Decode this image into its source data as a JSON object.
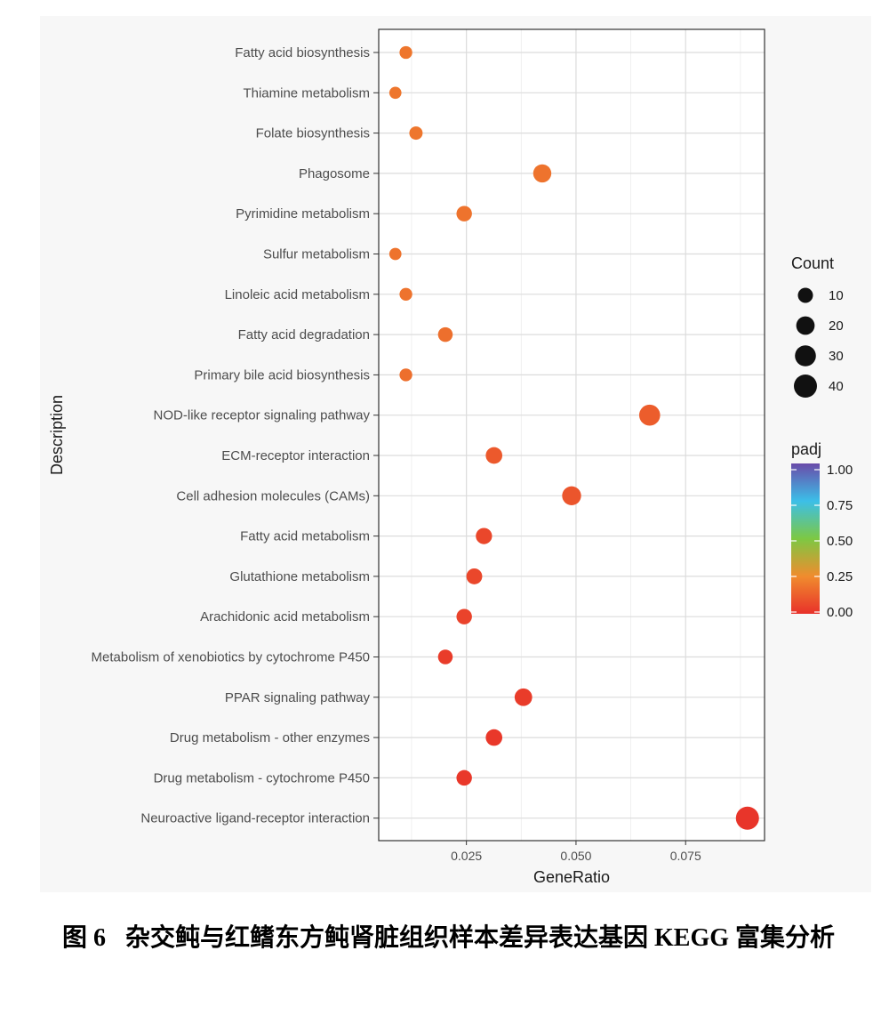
{
  "chart_data": {
    "type": "scatter",
    "xlabel": "GeneRatio",
    "ylabel": "Description",
    "xlim": [
      0.005,
      0.093
    ],
    "xticks": [
      0.025,
      0.05,
      0.075
    ],
    "xtick_labels": [
      "0.025",
      "0.050",
      "0.075"
    ],
    "grid": true,
    "categories": [
      "Fatty acid biosynthesis",
      "Thiamine metabolism",
      "Folate biosynthesis",
      "Phagosome",
      "Pyrimidine metabolism",
      "Sulfur metabolism",
      "Linoleic acid metabolism",
      "Fatty acid degradation",
      "Primary bile acid biosynthesis",
      "NOD-like receptor signaling pathway",
      "ECM-receptor interaction",
      "Cell adhesion molecules (CAMs)",
      "Fatty acid metabolism",
      "Glutathione metabolism",
      "Arachidonic acid metabolism",
      "Metabolism of xenobiotics by cytochrome P450",
      "PPAR signaling pathway",
      "Drug metabolism - other enzymes",
      "Drug metabolism - cytochrome P450",
      "Neuroactive ligand-receptor interaction"
    ],
    "gene_ratio": [
      0.0112,
      0.0088,
      0.0135,
      0.0423,
      0.0245,
      0.0088,
      0.0112,
      0.0202,
      0.0112,
      0.0668,
      0.0313,
      0.049,
      0.029,
      0.0268,
      0.0245,
      0.0202,
      0.038,
      0.0313,
      0.0245,
      0.0891
    ],
    "count": [
      5,
      4,
      6,
      19,
      11,
      4,
      5,
      9,
      5,
      30,
      14,
      22,
      13,
      12,
      11,
      9,
      17,
      14,
      11,
      40
    ],
    "padj": [
      0.19,
      0.19,
      0.19,
      0.18,
      0.18,
      0.18,
      0.18,
      0.17,
      0.17,
      0.12,
      0.11,
      0.1,
      0.06,
      0.06,
      0.05,
      0.03,
      0.03,
      0.02,
      0.02,
      0.01
    ],
    "legend": {
      "size_title": "Count",
      "size_values": [
        10,
        20,
        30,
        40
      ],
      "color_title": "padj",
      "color_ticks": [
        "1.00",
        "0.75",
        "0.50",
        "0.25",
        "0.00"
      ],
      "color_stops": [
        "#6a4ba9",
        "#3cbfe8",
        "#7dc843",
        "#f08c2e",
        "#e8312a"
      ],
      "placement": "right"
    }
  },
  "caption": {
    "figure_number": "图 6",
    "text": "杂交鲀与红鳍东方鲀肾脏组织样本差异表达基因 KEGG 富集分析"
  }
}
